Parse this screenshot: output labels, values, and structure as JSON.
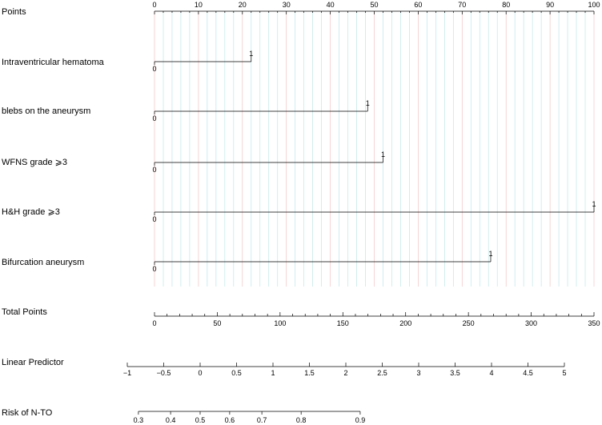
{
  "chart_data": {
    "type": "nomogram",
    "points_axis": {
      "label": "Points",
      "range": [
        0,
        100
      ],
      "major_ticks": [
        0,
        10,
        20,
        30,
        40,
        50,
        60,
        70,
        80,
        90,
        100
      ],
      "minor_step": 2,
      "grid": true,
      "grid_colors": {
        "major": "#f2c4c4",
        "minor": "#bfe6e6"
      }
    },
    "variables": [
      {
        "label": "Intraventricular hematoma",
        "levels": [
          {
            "value": "0",
            "points": 0
          },
          {
            "value": "1",
            "points": 22
          }
        ]
      },
      {
        "label": "blebs on the aneurysm",
        "levels": [
          {
            "value": "0",
            "points": 0
          },
          {
            "value": "1",
            "points": 48.5
          }
        ]
      },
      {
        "label": "WFNS grade ⩾3",
        "levels": [
          {
            "value": "0",
            "points": 0
          },
          {
            "value": "1",
            "points": 52
          }
        ]
      },
      {
        "label": "H&H grade ⩾3",
        "levels": [
          {
            "value": "0",
            "points": 0
          },
          {
            "value": "1",
            "points": 100
          }
        ]
      },
      {
        "label": "Bifurcation aneurysm",
        "levels": [
          {
            "value": "0",
            "points": 0
          },
          {
            "value": "1",
            "points": 76.5
          }
        ]
      }
    ],
    "total_points_axis": {
      "label": "Total Points",
      "range": [
        0,
        350
      ],
      "major_ticks": [
        0,
        50,
        100,
        150,
        200,
        250,
        300,
        350
      ],
      "minor_step": 10
    },
    "linear_predictor_axis": {
      "label": "Linear Predictor",
      "range": [
        -1,
        5
      ],
      "tick_values": [
        -1,
        -0.5,
        0,
        0.5,
        1,
        1.5,
        2,
        2.5,
        3,
        3.5,
        4,
        4.5,
        5
      ],
      "tick_labels": [
        "−1",
        "−0.5",
        "0",
        "0.5",
        "1",
        "1.5",
        "2",
        "2.5",
        "3",
        "3.5",
        "4",
        "4.5",
        "5"
      ]
    },
    "risk_axis": {
      "label": "Risk of N-TO",
      "tick_values": [
        0.3,
        0.4,
        0.5,
        0.6,
        0.7,
        0.8,
        0.9
      ],
      "tick_labels": [
        "0.3",
        "0.4",
        "0.5",
        "0.6",
        "0.7",
        "0.8",
        "0.9"
      ]
    }
  }
}
